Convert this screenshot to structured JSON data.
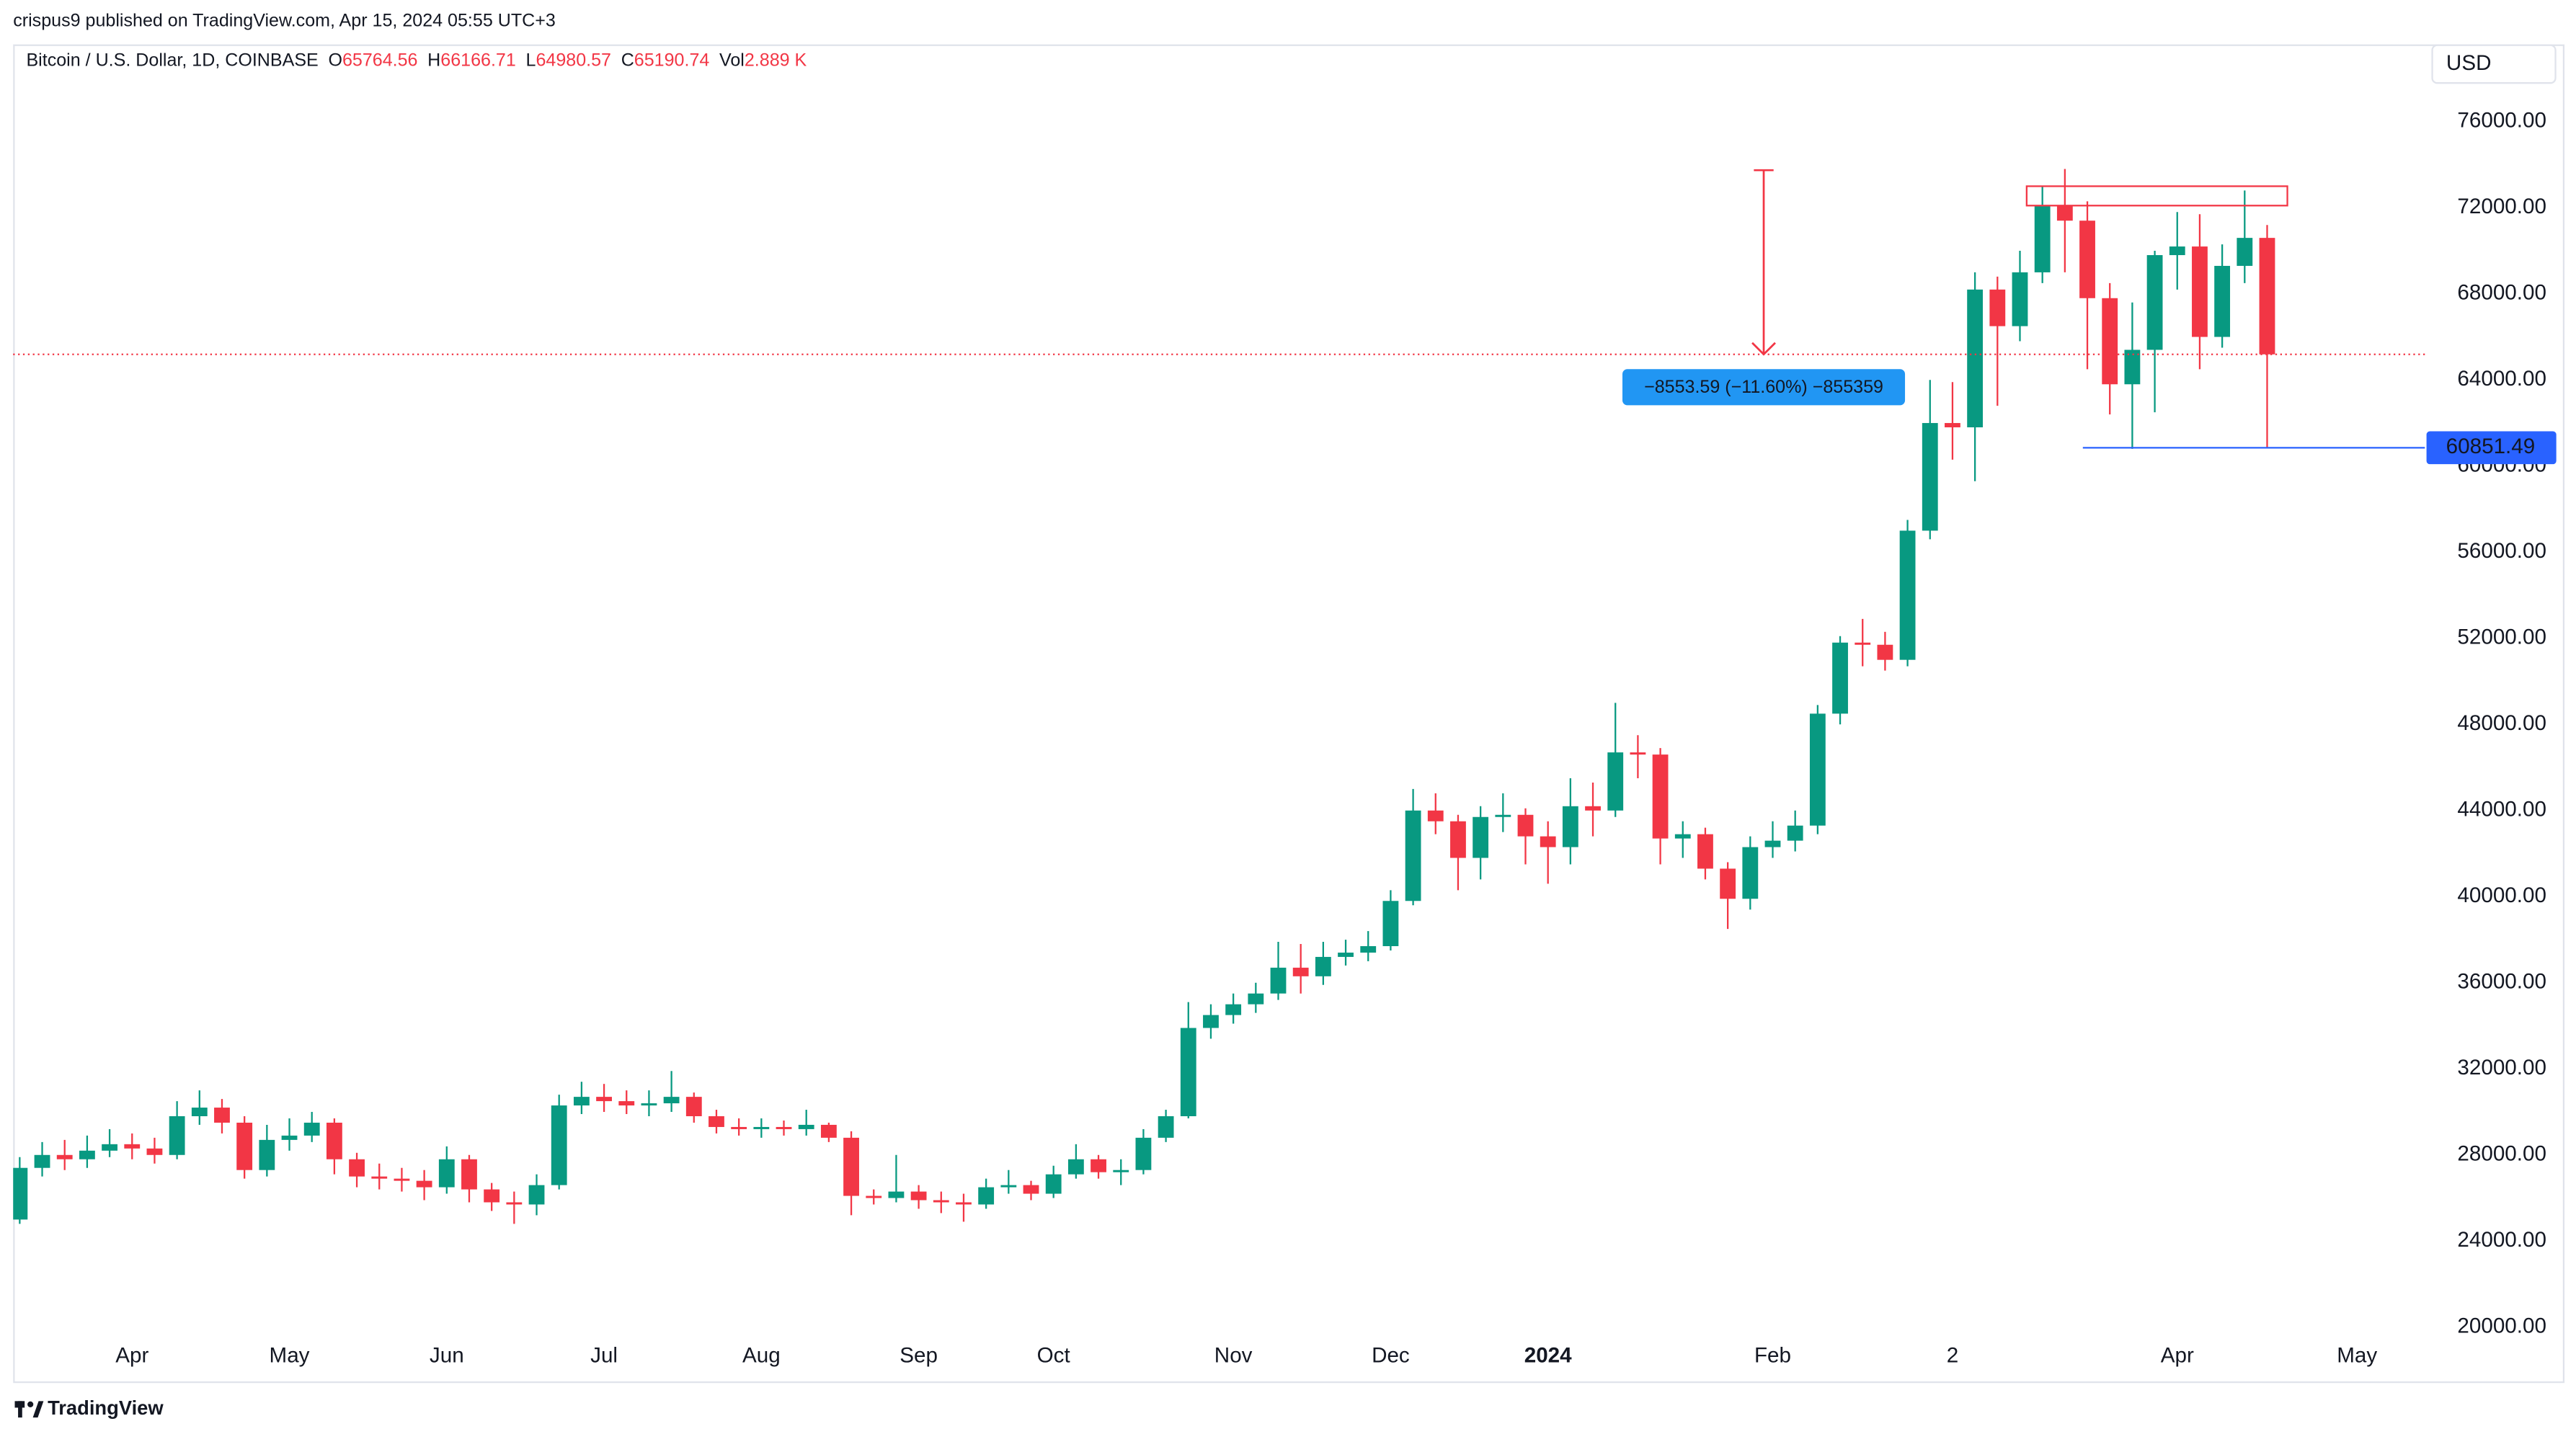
{
  "header": {
    "attribution": "crispus9 published on TradingView.com, Apr 15, 2024 05:55 UTC+3",
    "symbol": "Bitcoin / U.S. Dollar, 1D, COINBASE",
    "ohlcv": [
      {
        "label": "O",
        "value": 65764.56
      },
      {
        "label": "H",
        "value": 66166.71
      },
      {
        "label": "L",
        "value": 64980.57
      },
      {
        "label": "C",
        "value": 65190.74
      },
      {
        "label": "Vol",
        "value": "2.889 K"
      }
    ]
  },
  "chart_data": {
    "type": "candlestick",
    "currency": "USD",
    "categories": [
      null,
      null,
      null,
      null,
      null,
      "Apr",
      null,
      null,
      null,
      null,
      null,
      null,
      "May",
      null,
      null,
      null,
      null,
      null,
      null,
      "Jun",
      null,
      null,
      null,
      null,
      null,
      null,
      "Jul",
      null,
      null,
      null,
      null,
      null,
      null,
      "Aug",
      null,
      null,
      null,
      null,
      null,
      null,
      "Sep",
      null,
      null,
      null,
      null,
      null,
      "Oct",
      null,
      null,
      null,
      null,
      null,
      null,
      null,
      "Nov",
      null,
      null,
      null,
      null,
      null,
      null,
      "Dec",
      null,
      null,
      null,
      null,
      null,
      null,
      "2024",
      null,
      null,
      null,
      null,
      null,
      null,
      null,
      null,
      null,
      "Feb",
      null,
      null,
      null,
      null,
      null,
      null,
      null,
      "2",
      null,
      null,
      null,
      null,
      null,
      null,
      null,
      null,
      null,
      "Apr",
      null,
      null,
      null,
      null,
      null,
      null,
      null,
      "May",
      null,
      null,
      null
    ],
    "open": [
      25000,
      27400,
      28000,
      27800,
      28200,
      28500,
      28300,
      28000,
      29800,
      30200,
      29500,
      27300,
      28700,
      28900,
      29500,
      27800,
      27000,
      26900,
      26800,
      26500,
      27800,
      26400,
      25800,
      25700,
      26600,
      30300,
      30700,
      30500,
      30300,
      30400,
      30700,
      29800,
      29300,
      29200,
      29300,
      29200,
      29400,
      28800,
      26100,
      26000,
      26300,
      25900,
      25800,
      25700,
      26500,
      26600,
      26200,
      27100,
      27800,
      27200,
      27300,
      28800,
      29800,
      33900,
      34500,
      35000,
      35500,
      36700,
      36300,
      37200,
      37400,
      37700,
      39800,
      44000,
      43500,
      41800,
      43700,
      43800,
      42800,
      42300,
      44200,
      44000,
      46700,
      46600,
      42700,
      42900,
      41300,
      39900,
      42300,
      42600,
      43300,
      48500,
      51800,
      51700,
      51000,
      57000,
      62000,
      61800,
      68200,
      66500,
      69000,
      72100,
      71400,
      67800,
      63800,
      65400,
      69800,
      70200,
      66000,
      69300,
      70600,
      null,
      null,
      null,
      null,
      null,
      null,
      null
    ],
    "high": [
      27900,
      28600,
      28700,
      28900,
      29200,
      29000,
      28800,
      30500,
      31000,
      30600,
      29800,
      29400,
      29700,
      30000,
      29700,
      28100,
      27600,
      27400,
      27300,
      28400,
      28000,
      26700,
      26300,
      27100,
      30800,
      31400,
      31300,
      31000,
      31000,
      31900,
      30900,
      30100,
      29700,
      29700,
      29600,
      30100,
      29500,
      29100,
      26400,
      28000,
      26600,
      26300,
      26200,
      26900,
      27300,
      26800,
      27500,
      28500,
      28000,
      27800,
      29200,
      30100,
      35100,
      35000,
      35500,
      36000,
      37900,
      37800,
      37900,
      38000,
      38400,
      40300,
      45000,
      44800,
      43800,
      44200,
      44800,
      44100,
      43500,
      45500,
      45300,
      49000,
      47500,
      46900,
      43500,
      43200,
      41600,
      42800,
      43500,
      44000,
      48900,
      52100,
      52900,
      52300,
      57500,
      64000,
      63900,
      69000,
      68800,
      70000,
      73000,
      73800,
      72300,
      68500,
      67600,
      70000,
      71800,
      71700,
      70300,
      72800,
      71200,
      null,
      null,
      null,
      null,
      null,
      null,
      null
    ],
    "low": [
      24800,
      27000,
      27300,
      27400,
      27900,
      27800,
      27600,
      27800,
      29400,
      29000,
      26900,
      27000,
      28200,
      28600,
      27100,
      26500,
      26400,
      26300,
      25900,
      26200,
      25800,
      25400,
      24800,
      25200,
      26400,
      29900,
      30000,
      29900,
      29800,
      30000,
      29500,
      29000,
      28900,
      28800,
      28900,
      28900,
      28600,
      25200,
      25700,
      25800,
      25500,
      25300,
      24900,
      25500,
      26200,
      25900,
      26000,
      26900,
      26900,
      26600,
      27100,
      28600,
      29700,
      33400,
      34100,
      34600,
      35200,
      35500,
      35900,
      36800,
      37000,
      37500,
      39600,
      42900,
      40300,
      40800,
      43000,
      41500,
      40600,
      41500,
      42800,
      43700,
      45500,
      41500,
      41800,
      40800,
      38500,
      39400,
      41800,
      42100,
      42900,
      48000,
      50700,
      50500,
      50700,
      56600,
      60300,
      59300,
      62800,
      65800,
      68500,
      69000,
      64500,
      62400,
      60800,
      62500,
      68200,
      64500,
      65500,
      68500,
      60851.49,
      null,
      null,
      null,
      null,
      null,
      null,
      null
    ],
    "close": [
      27400,
      28000,
      27800,
      28200,
      28500,
      28300,
      28000,
      29800,
      30200,
      29500,
      27300,
      28700,
      28900,
      29500,
      27800,
      27000,
      26900,
      26800,
      26500,
      27800,
      26400,
      25800,
      25700,
      26600,
      30300,
      30700,
      30500,
      30300,
      30400,
      30700,
      29800,
      29300,
      29200,
      29300,
      29200,
      29400,
      28800,
      26100,
      26000,
      26300,
      25900,
      25800,
      25700,
      26500,
      26600,
      26200,
      27100,
      27800,
      27200,
      27300,
      28800,
      29800,
      33900,
      34500,
      35000,
      35500,
      36700,
      36300,
      37200,
      37400,
      37700,
      39800,
      44000,
      43500,
      41800,
      43700,
      43800,
      42800,
      42300,
      44200,
      44000,
      46700,
      46600,
      42700,
      42900,
      41300,
      39900,
      42300,
      42600,
      43300,
      48500,
      51800,
      51700,
      51000,
      57000,
      62000,
      61800,
      68200,
      66500,
      69000,
      72100,
      71400,
      67800,
      63800,
      65400,
      69800,
      70200,
      66000,
      69300,
      70600,
      65190.74,
      null,
      null,
      null,
      null,
      null,
      null,
      null
    ],
    "up_color": "#089981",
    "down_color": "#f23645",
    "ylim": [
      20000,
      80000
    ],
    "yticks": [
      {
        "value": 20000,
        "label": "20000.00"
      },
      {
        "value": 24000,
        "label": "24000.00"
      },
      {
        "value": 28000,
        "label": "28000.00"
      },
      {
        "value": 32000,
        "label": "32000.00"
      },
      {
        "value": 36000,
        "label": "36000.00"
      },
      {
        "value": 40000,
        "label": "40000.00"
      },
      {
        "value": 44000,
        "label": "44000.00"
      },
      {
        "value": 48000,
        "label": "48000.00"
      },
      {
        "value": 52000,
        "label": "52000.00"
      },
      {
        "value": 56000,
        "label": "56000.00"
      },
      {
        "value": 60000,
        "label": "60000.00"
      },
      {
        "value": 64000,
        "label": "64000.00"
      },
      {
        "value": 68000,
        "label": "68000.00"
      },
      {
        "value": 72000,
        "label": "72000.00"
      },
      {
        "value": 76000,
        "label": "76000.00"
      }
    ],
    "grid": false,
    "last_price_color": "#f23645",
    "support_level": 60851.49,
    "support_color": "#2962ff",
    "resistance_zone": [
      72100,
      73000
    ],
    "measure": {
      "from": 73744.33,
      "to": 65190.74,
      "label": "−8553.59 (−11.60%) −855359",
      "color": "#f23645",
      "box_color": "#2196f3"
    }
  },
  "footer": {
    "brand": "TradingView"
  }
}
